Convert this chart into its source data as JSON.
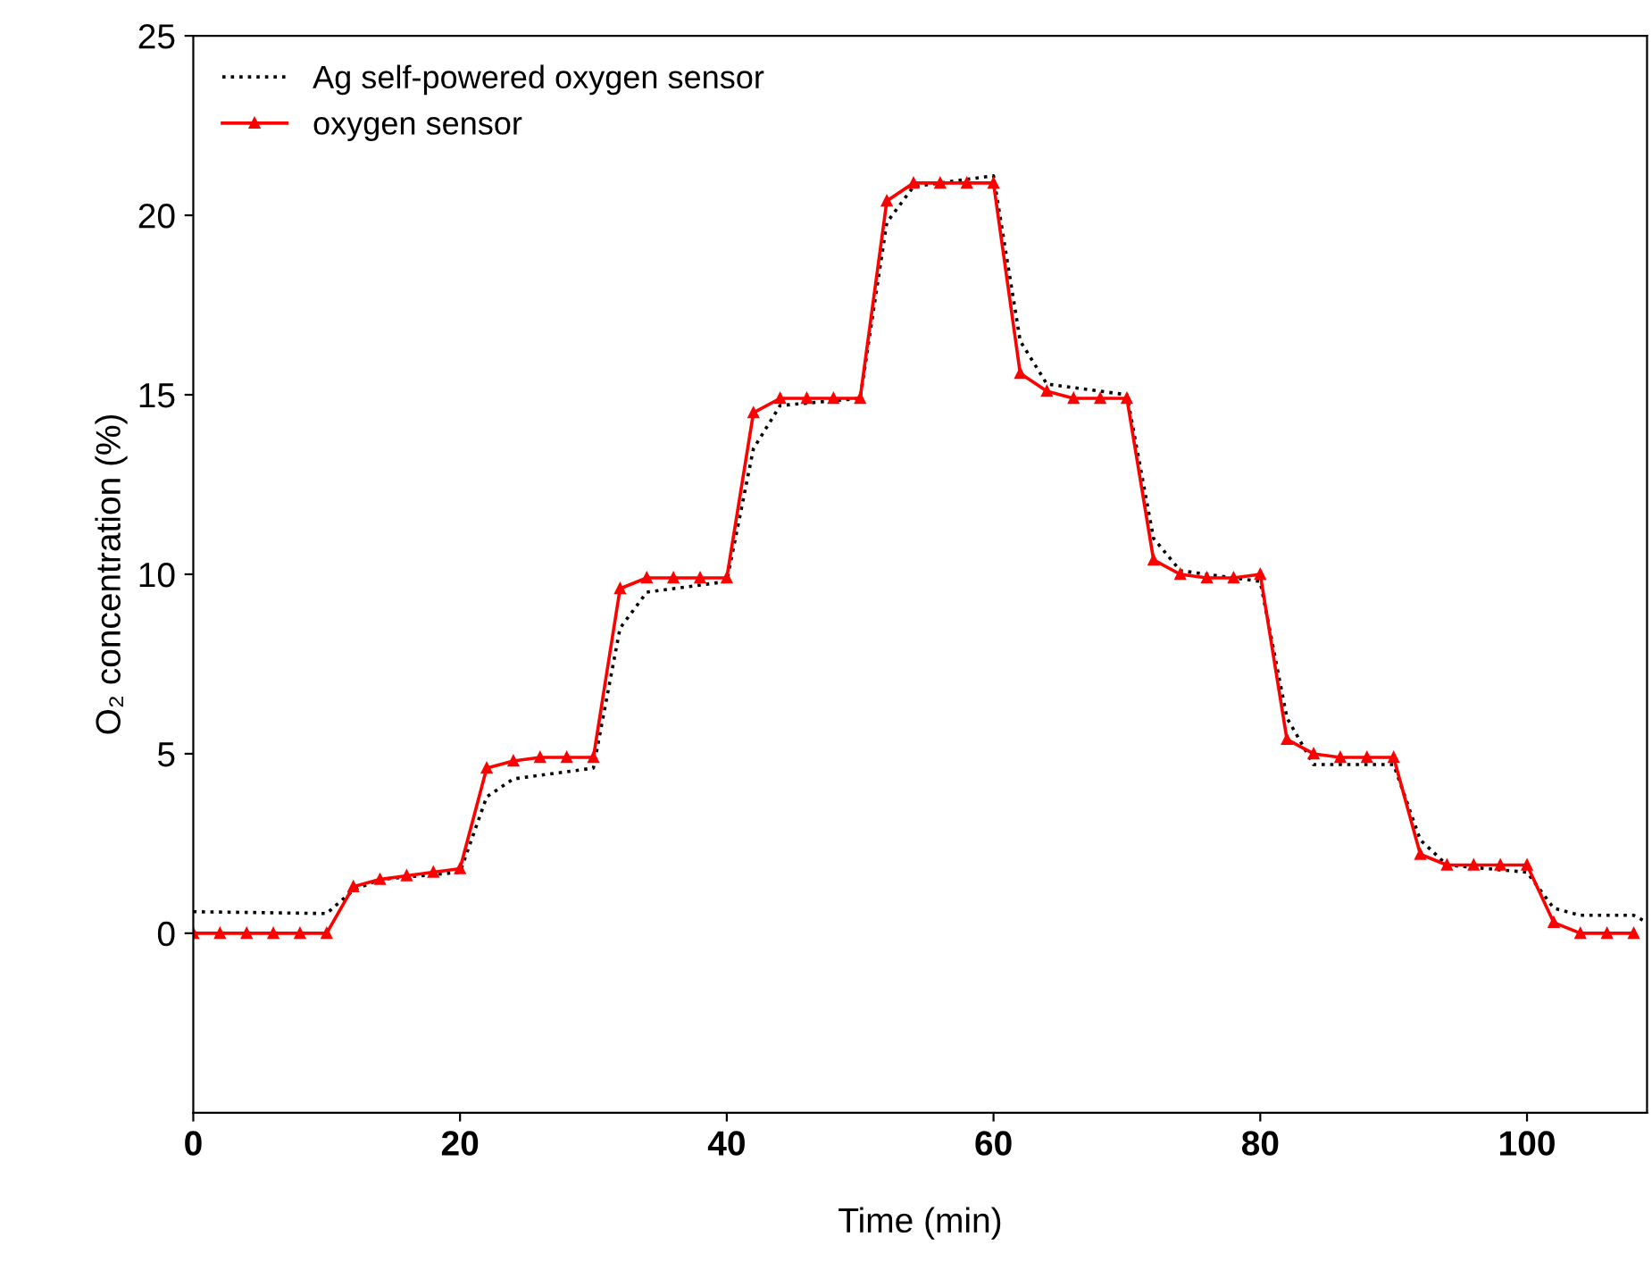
{
  "chart_data": {
    "type": "line",
    "xlabel": "Time (min)",
    "ylabel": "O₂ concentration (%)",
    "xlim": [
      0,
      109
    ],
    "ylim": [
      -5,
      25
    ],
    "xticks": [
      0,
      20,
      40,
      60,
      80,
      100
    ],
    "yticks": [
      0,
      5,
      10,
      15,
      20,
      25
    ],
    "grid": false,
    "legend": "top left",
    "series": [
      {
        "name": "Ag self-powered oxygen sensor",
        "color": "#000000",
        "line_style": "dotted",
        "marker": "none",
        "x": [
          0,
          10,
          12,
          14,
          20,
          22,
          24,
          28,
          30,
          32,
          34,
          40,
          42,
          44,
          50,
          52,
          54,
          60,
          62,
          64,
          70,
          72,
          74,
          80,
          82,
          84,
          90,
          92,
          94,
          100,
          102,
          104,
          108,
          109
        ],
        "values": [
          0.6,
          0.55,
          1.2,
          1.5,
          1.7,
          3.8,
          4.3,
          4.5,
          4.6,
          8.5,
          9.5,
          9.8,
          13.5,
          14.7,
          14.9,
          19.8,
          20.8,
          21.1,
          16.5,
          15.3,
          15.0,
          11.0,
          10.1,
          9.8,
          6.0,
          4.7,
          4.7,
          2.6,
          1.9,
          1.7,
          0.7,
          0.5,
          0.5,
          0.3
        ]
      },
      {
        "name": "oxygen sensor",
        "color": "#ff0000",
        "line_style": "solid",
        "marker": "triangle",
        "x": [
          0,
          2,
          4,
          6,
          8,
          10,
          12,
          14,
          16,
          18,
          20,
          22,
          24,
          26,
          28,
          30,
          32,
          34,
          36,
          38,
          40,
          42,
          44,
          46,
          48,
          50,
          52,
          54,
          56,
          58,
          60,
          62,
          64,
          66,
          68,
          70,
          72,
          74,
          76,
          78,
          80,
          82,
          84,
          86,
          88,
          90,
          92,
          94,
          96,
          98,
          100,
          102,
          104,
          106,
          108
        ],
        "values": [
          0,
          0,
          0,
          0,
          0,
          0,
          1.3,
          1.5,
          1.6,
          1.7,
          1.8,
          4.6,
          4.8,
          4.9,
          4.9,
          4.9,
          9.6,
          9.9,
          9.9,
          9.9,
          9.9,
          14.5,
          14.9,
          14.9,
          14.9,
          14.9,
          20.4,
          20.9,
          20.9,
          20.9,
          20.9,
          15.6,
          15.1,
          14.9,
          14.9,
          14.9,
          10.4,
          10.0,
          9.9,
          9.9,
          10.0,
          5.4,
          5.0,
          4.9,
          4.9,
          4.9,
          2.2,
          1.9,
          1.9,
          1.9,
          1.9,
          0.3,
          0,
          0,
          0
        ]
      }
    ]
  }
}
